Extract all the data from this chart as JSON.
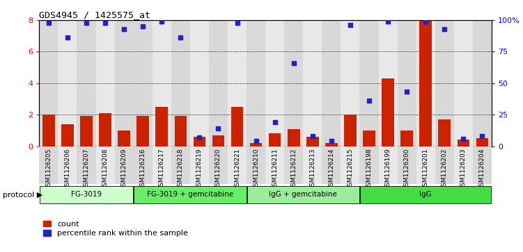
{
  "title": "GDS4945 / 1425575_at",
  "samples": [
    "GSM1126205",
    "GSM1126206",
    "GSM1126207",
    "GSM1126208",
    "GSM1126209",
    "GSM1126216",
    "GSM1126217",
    "GSM1126218",
    "GSM1126219",
    "GSM1126220",
    "GSM1126221",
    "GSM1126210",
    "GSM1126211",
    "GSM1126212",
    "GSM1126213",
    "GSM1126214",
    "GSM1126215",
    "GSM1126198",
    "GSM1126199",
    "GSM1126200",
    "GSM1126201",
    "GSM1126202",
    "GSM1126203",
    "GSM1126204"
  ],
  "bar_values": [
    2.0,
    1.4,
    1.9,
    2.1,
    1.0,
    1.9,
    2.5,
    1.9,
    0.6,
    0.7,
    2.5,
    0.2,
    0.8,
    1.1,
    0.6,
    0.2,
    2.0,
    1.0,
    4.3,
    1.0,
    8.0,
    1.7,
    0.4,
    0.5
  ],
  "dot_values_pct": [
    98,
    86,
    98,
    98,
    93,
    95,
    99,
    86,
    7,
    14,
    98,
    4,
    19,
    66,
    8,
    4,
    96,
    36,
    99,
    43,
    99,
    93,
    6,
    8
  ],
  "groups": [
    {
      "label": "FG-3019",
      "start": 0,
      "end": 5,
      "color": "#ccffcc"
    },
    {
      "label": "FG-3019 + gemcitabine",
      "start": 5,
      "end": 11,
      "color": "#66ee66"
    },
    {
      "label": "IgG + gemcitabine",
      "start": 11,
      "end": 17,
      "color": "#99ee99"
    },
    {
      "label": "IgG",
      "start": 17,
      "end": 24,
      "color": "#44dd44"
    }
  ],
  "col_bg_colors": [
    "#d8d8d8",
    "#e8e8e8",
    "#d8d8d8",
    "#e8e8e8",
    "#d8d8d8",
    "#d8d8d8",
    "#e8e8e8",
    "#d8d8d8",
    "#e8e8e8",
    "#d8d8d8",
    "#e8e8e8",
    "#d8d8d8",
    "#e8e8e8",
    "#d8d8d8",
    "#e8e8e8",
    "#d8d8d8",
    "#e8e8e8",
    "#d8d8d8",
    "#e8e8e8",
    "#d8d8d8",
    "#e8e8e8",
    "#d8d8d8",
    "#e8e8e8",
    "#d8d8d8"
  ],
  "bar_color": "#cc2200",
  "dot_color": "#2222cc",
  "ylim_left": [
    0,
    8
  ],
  "ylim_right": [
    0,
    100
  ],
  "yticks_left": [
    0,
    2,
    4,
    6,
    8
  ],
  "yticks_right": [
    0,
    25,
    50,
    75,
    100
  ],
  "ytick_right_labels": [
    "0",
    "25",
    "50",
    "75",
    "100%"
  ],
  "gridlines": [
    2,
    4,
    6
  ],
  "legend_items": [
    {
      "label": "count",
      "color": "#cc2200"
    },
    {
      "label": "percentile rank within the sample",
      "color": "#2222cc"
    }
  ]
}
